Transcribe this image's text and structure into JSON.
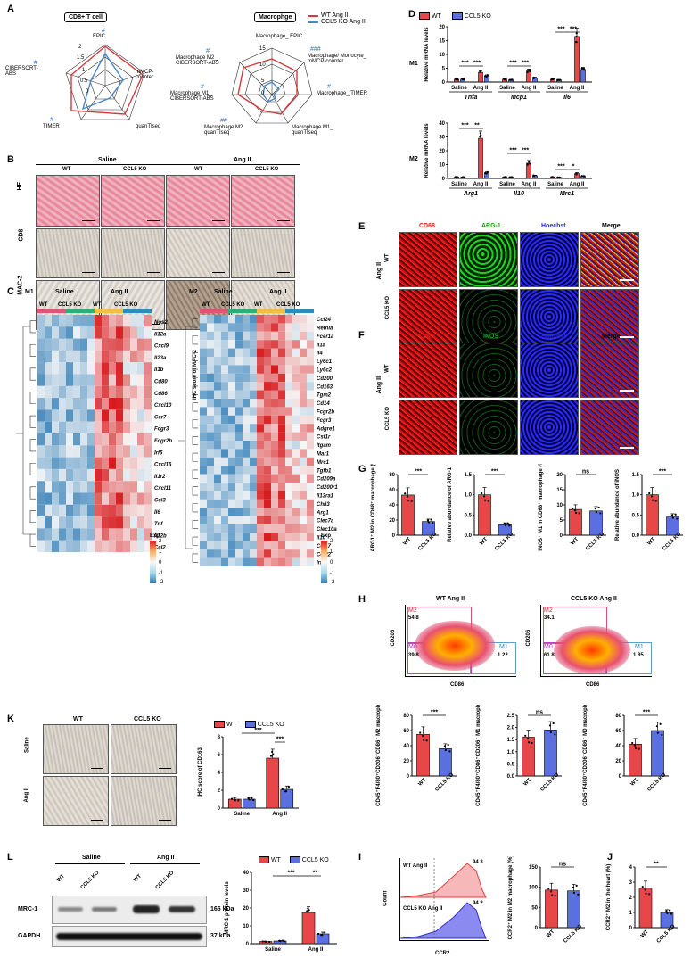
{
  "panels": {
    "A": "A",
    "B": "B",
    "C": "C",
    "D": "D",
    "E": "E",
    "F": "F",
    "G": "G",
    "H": "H",
    "I": "I",
    "J": "J",
    "K": "K",
    "L": "L"
  },
  "colors": {
    "wt": "#e8474a",
    "ko": "#5a6fe0",
    "wt_line": "#d33a3d",
    "ko_line": "#4a86c8",
    "hashtag": "#2a6fc0"
  },
  "legend": {
    "wt": "WT",
    "ko": "CCL5 KO",
    "wt_angii": "WT Ang II",
    "ko_angii": "CCL5 KO Ang II"
  },
  "groups": {
    "saline": "Saline",
    "angii": "Ang II",
    "wt": "WT",
    "ko": "CCL5 KO"
  },
  "panelA": {
    "cd8_title": "CD8+ T cell",
    "mac_title": "Macrophge",
    "cd8_axes": [
      "EPIC",
      "mMCP-counter",
      "quanTIseq",
      "TIMER",
      "CIBERSORT-ABS"
    ],
    "cd8_ticks": [
      "2",
      "1.5",
      "1",
      "0.5",
      "0"
    ],
    "mac_axes": [
      "Macrophage_ EPIC",
      "Macrophage/ Monocyte_ mMCP-counter",
      "Macrophage_ TIMER",
      "Macrophage M1_ quanTIseq",
      "Macrophage M2 quanTIseq",
      "Macrophage M1_ CIBERSORT-ABS",
      "Macrophage M2_ CIBERSORT-ABS"
    ],
    "mac_ticks": [
      "15",
      "10",
      "5",
      "0"
    ],
    "marks": {
      "h1": "#",
      "h2": "#",
      "h3": "#",
      "h4": "#",
      "m1": "#",
      "m2": "###",
      "m3": "#",
      "m4": "##",
      "m5": "#"
    }
  },
  "panelB": {
    "rows": [
      "HE",
      "CD8",
      "MAC-2"
    ],
    "cd8_ylabel": "IHC score of CD8",
    "mac2_ylabel": "IHC score of MAC-2",
    "cd8_yticks": [
      "0",
      "1",
      "2",
      "3",
      "4",
      "5"
    ],
    "mac2_yticks": [
      "0",
      "2",
      "4",
      "6",
      "8"
    ],
    "sig": "***"
  },
  "panelC": {
    "m1_label": "M1",
    "m2_label": "M2",
    "exp": "Exp",
    "scale": [
      "2",
      "1",
      "0",
      "-1",
      "-2"
    ],
    "m1_genes": [
      "Nos2",
      "Il12a",
      "Cxcl9",
      "Il23a",
      "Il1b",
      "Cd80",
      "Cd86",
      "Cxcl10",
      "Ccr7",
      "Fcgr3",
      "Fcgr2b",
      "Irf5",
      "Cxcl16",
      "Il1r2",
      "Cxcl11",
      "Ccl3",
      "Il6",
      "Tnf",
      "Il12b",
      "Ccl2"
    ],
    "m2_genes": [
      "Ccl24",
      "Retnla",
      "Fcer1a",
      "Il1a",
      "Il4",
      "Ly6c1",
      "Ly6c2",
      "Cd200",
      "Cd163",
      "Tgm2",
      "Cd14",
      "Fcgr2b",
      "Fcgr3",
      "Adgre1",
      "Csf1r",
      "Itgam",
      "Mar1",
      "Mrc1",
      "Tgfb1",
      "Cd209a",
      "Cd200r1",
      "Il13ra1",
      "Chil3",
      "Arg1",
      "Clec7a",
      "Clec10a",
      "Il10",
      "Ccl17",
      "Ccl22",
      "Irf4"
    ]
  },
  "panelD": {
    "m1": "M1",
    "m2": "M2",
    "ylabel": "Relative mRNA levels",
    "m1_genes": [
      "Tnfa",
      "Mcp1",
      "Il6"
    ],
    "m2_genes": [
      "Arg1",
      "Il10",
      "Mrc1"
    ],
    "m1_yticks": [
      "0",
      "5",
      "10",
      "15",
      "20"
    ],
    "m2_yticks": [
      "0",
      "10",
      "20",
      "30",
      "40"
    ],
    "s3": "***",
    "s2": "**",
    "s1": "*"
  },
  "panelE": {
    "cols": [
      "CD68",
      "ARG-1",
      "Hoechst",
      "Merge"
    ],
    "angii": "Ang II"
  },
  "panelF": {
    "cols": [
      "CD68",
      "iNOS",
      "Hoechst",
      "Merge"
    ],
    "angii": "Ang II"
  },
  "panelG": {
    "ylabels": [
      "ARG1⁺ M2 in CD68⁺ macrophage (%)",
      "Relative abundance of ARG-1",
      "iNOS⁺ M1 in CD68⁺ macrophage (%)",
      "Relative abundance of iNOS"
    ],
    "sig": [
      "***",
      "***",
      "ns",
      "***"
    ]
  },
  "panelH": {
    "titles": [
      "WT Ang II",
      "CCL5 KO Ang II"
    ],
    "xaxis": "CD86",
    "yaxis": "CD206",
    "wt": {
      "m2": "M2",
      "m2v": "54.8",
      "m0": "M0",
      "m0v": "39.8",
      "m1": "M1",
      "m1v": "1.22"
    },
    "ko": {
      "m2": "M2",
      "m2v": "34.1",
      "m0": "M0",
      "m0v": "61.8",
      "m1": "M1",
      "m1v": "1.85"
    },
    "bar_ylabels": [
      "CD45⁺F4/80⁺CD206⁺CD86⁻ M2 macrophage (%)",
      "CD45⁺F4/80⁺CD86⁺CD206⁻ M1 macrophage (%)",
      "CD45⁺F4/80⁺CD206⁻CD86⁻ M0 macrophage (%)"
    ],
    "sig": [
      "***",
      "ns",
      "***"
    ]
  },
  "panelI": {
    "wt": "WT Ang II",
    "wtv": "94.3",
    "ko": "CCL5 KO Ang II",
    "kov": "94.2",
    "xaxis": "CCR2",
    "yaxis": "Count",
    "ylabel": "CCR2⁺ M2 in M2 macrophage (%)",
    "sig": "ns"
  },
  "panelJ": {
    "ylabel": "CCR2⁺ M2 in the heart (%)",
    "sig": "**"
  },
  "panelK": {
    "ylabel": "IHC score of CD163",
    "rows": [
      "Saline",
      "Ang II"
    ],
    "sig": "***"
  },
  "panelL": {
    "mrc1": "MRC-1",
    "mrc1_kda": "166 kDa",
    "gapdh": "GAPDH",
    "gapdh_kda": "37 kDa",
    "ylabel": "MRC-1 protein levels",
    "s3": "***",
    "s2": "**"
  },
  "chart_data": [
    {
      "type": "bar",
      "id": "B_cd8",
      "ylabel": "IHC score of CD8",
      "ylim": [
        0,
        5
      ],
      "categories": [
        "Saline",
        "Ang II"
      ],
      "series": [
        {
          "name": "WT",
          "values": [
            0.8,
            3.6
          ]
        },
        {
          "name": "CCL5 KO",
          "values": [
            0.6,
            1.9
          ]
        }
      ]
    },
    {
      "type": "bar",
      "id": "B_mac2",
      "ylabel": "IHC score of MAC-2",
      "ylim": [
        0,
        8
      ],
      "categories": [
        "Saline",
        "Ang II"
      ],
      "series": [
        {
          "name": "WT",
          "values": [
            0.9,
            6.3
          ]
        },
        {
          "name": "CCL5 KO",
          "values": [
            0.7,
            2.1
          ]
        }
      ]
    },
    {
      "type": "bar",
      "id": "D_m1",
      "ylabel": "Relative mRNA levels",
      "ylim": [
        0,
        20
      ],
      "categories": [
        "Tnfa Saline",
        "Tnfa Ang II",
        "Mcp1 Saline",
        "Mcp1 Ang II",
        "Il6 Saline",
        "Il6 Ang II"
      ],
      "series": [
        {
          "name": "WT",
          "values": [
            1,
            3.5,
            1,
            4,
            1,
            16.5
          ]
        },
        {
          "name": "CCL5 KO",
          "values": [
            1,
            2.2,
            0.8,
            1.5,
            0.8,
            4.5
          ]
        }
      ]
    },
    {
      "type": "bar",
      "id": "D_m2",
      "ylabel": "Relative mRNA levels",
      "ylim": [
        0,
        40
      ],
      "categories": [
        "Arg1 Saline",
        "Arg1 Ang II",
        "Il10 Saline",
        "Il10 Ang II",
        "Mrc1 Saline",
        "Mrc1 Ang II"
      ],
      "series": [
        {
          "name": "WT",
          "values": [
            1,
            29,
            1,
            11,
            1,
            3.5
          ]
        },
        {
          "name": "CCL5 KO",
          "values": [
            0.8,
            4,
            0.9,
            2,
            0.8,
            1.6
          ]
        }
      ]
    },
    {
      "type": "bar",
      "id": "G1",
      "ylim": [
        0,
        80
      ],
      "categories": [
        "WT",
        "CCL5 KO"
      ],
      "values": [
        53,
        18
      ]
    },
    {
      "type": "bar",
      "id": "G2",
      "ylim": [
        0,
        1.5
      ],
      "categories": [
        "WT",
        "CCL5 KO"
      ],
      "values": [
        1.0,
        0.26
      ]
    },
    {
      "type": "bar",
      "id": "G3",
      "ylim": [
        0,
        20
      ],
      "categories": [
        "WT",
        "CCL5 KO"
      ],
      "values": [
        8.5,
        8.0
      ]
    },
    {
      "type": "bar",
      "id": "G4",
      "ylim": [
        0,
        1.5
      ],
      "categories": [
        "WT",
        "CCL5 KO"
      ],
      "values": [
        1.0,
        0.45
      ]
    },
    {
      "type": "bar",
      "id": "H1",
      "ylim": [
        0,
        80
      ],
      "categories": [
        "WT",
        "CCL5 KO"
      ],
      "values": [
        55,
        36
      ]
    },
    {
      "type": "bar",
      "id": "H2",
      "ylim": [
        0,
        2.5
      ],
      "categories": [
        "WT",
        "CCL5 KO"
      ],
      "values": [
        1.6,
        1.9
      ]
    },
    {
      "type": "bar",
      "id": "H3",
      "ylim": [
        0,
        80
      ],
      "categories": [
        "WT",
        "CCL5 KO"
      ],
      "values": [
        42,
        60
      ]
    },
    {
      "type": "bar",
      "id": "I",
      "ylim": [
        0,
        150
      ],
      "categories": [
        "WT",
        "CCL5 KO"
      ],
      "values": [
        93,
        91
      ]
    },
    {
      "type": "bar",
      "id": "J",
      "ylim": [
        0,
        4
      ],
      "categories": [
        "WT",
        "CCL5 KO"
      ],
      "values": [
        2.6,
        1.0
      ]
    },
    {
      "type": "bar",
      "id": "K",
      "ylabel": "IHC score of CD163",
      "ylim": [
        0,
        8
      ],
      "categories": [
        "Saline",
        "Ang II"
      ],
      "series": [
        {
          "name": "WT",
          "values": [
            1.0,
            5.6
          ]
        },
        {
          "name": "CCL5 KO",
          "values": [
            1.0,
            2.1
          ]
        }
      ]
    },
    {
      "type": "bar",
      "id": "L",
      "ylabel": "MRC-1 protein levels",
      "ylim": [
        0,
        40
      ],
      "categories": [
        "Saline",
        "Ang II"
      ],
      "series": [
        {
          "name": "WT",
          "values": [
            1.2,
            17.5
          ]
        },
        {
          "name": "CCL5 KO",
          "values": [
            1.5,
            5.5
          ]
        }
      ]
    }
  ]
}
